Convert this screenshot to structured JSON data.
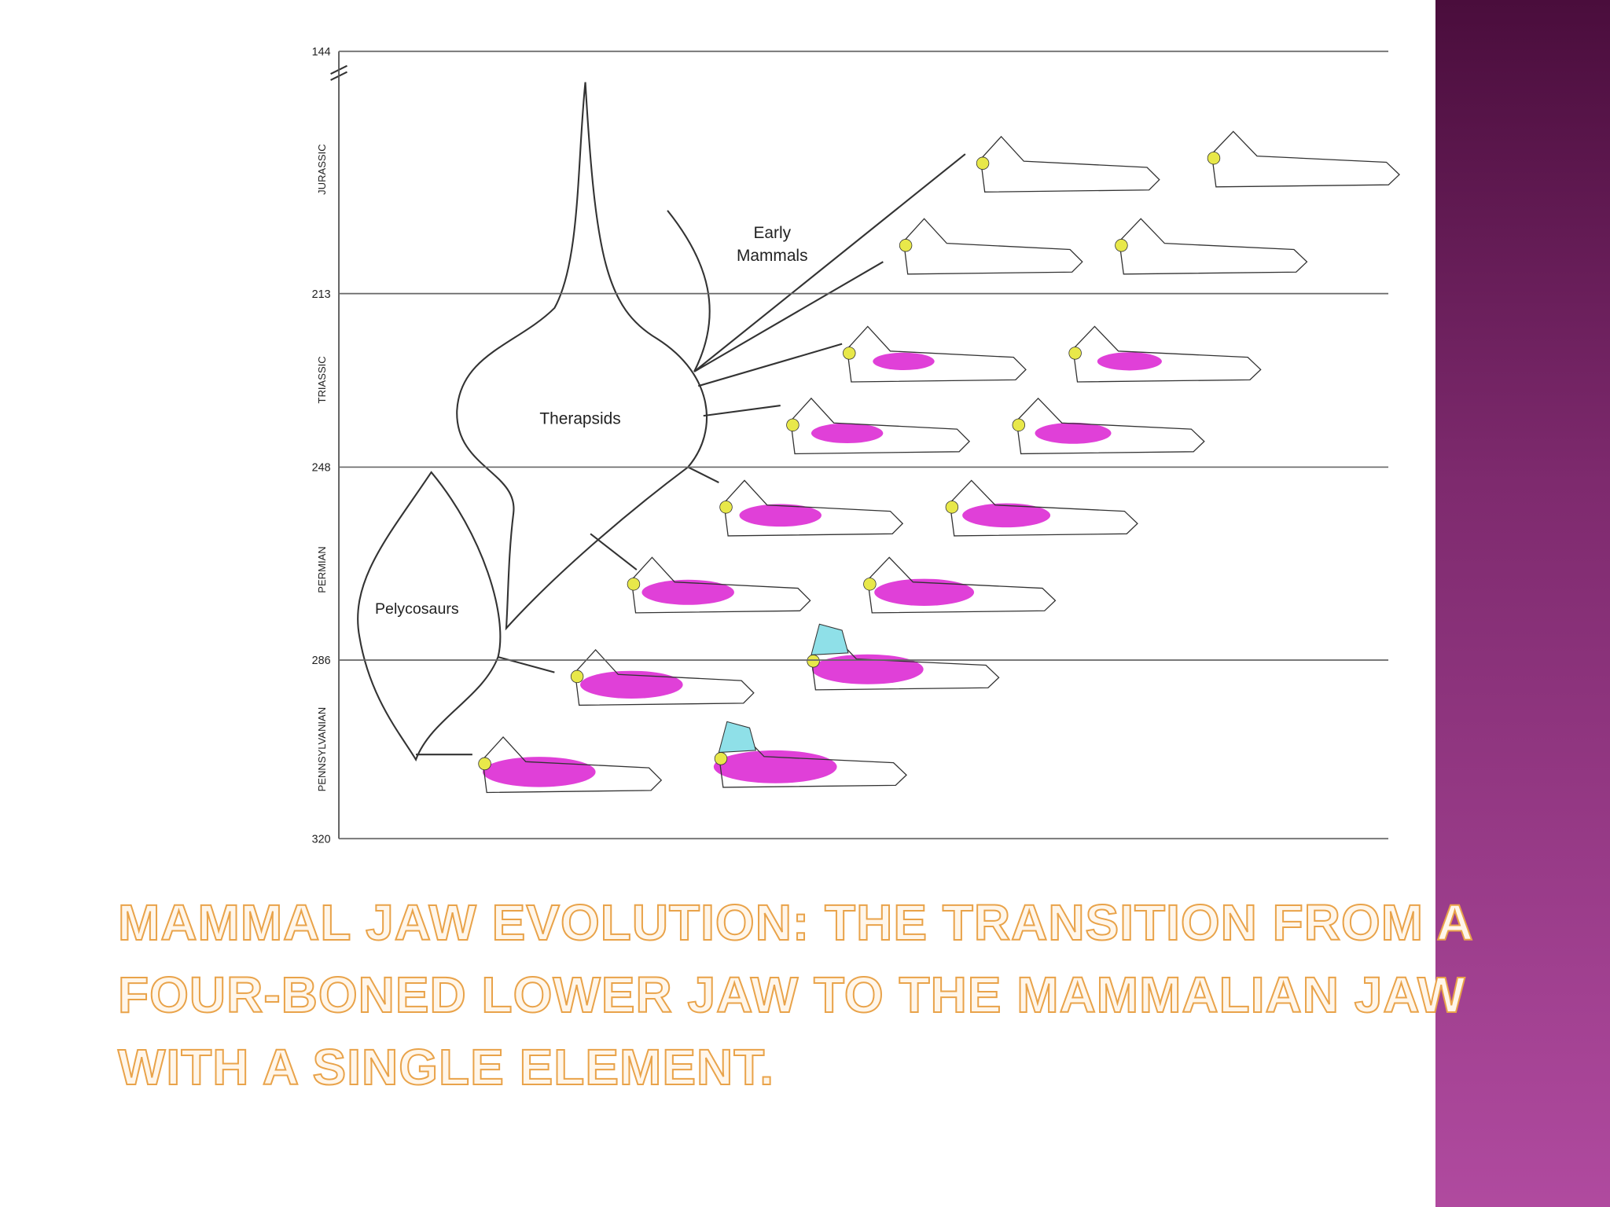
{
  "slide": {
    "title": "MAMMAL JAW EVOLUTION: THE TRANSITION FROM A FOUR-BONED LOWER JAW TO THE MAMMALIAN JAW WITH A SINGLE ELEMENT."
  },
  "diagram": {
    "time_ticks": [
      144,
      213,
      248,
      286,
      320
    ],
    "periods": [
      "JURASSIC",
      "TRIASSIC",
      "PERMIAN",
      "PENNSYLVANIAN"
    ],
    "clades": {
      "early_mammals": [
        "Early",
        "Mammals"
      ],
      "therapsids": "Therapsids",
      "pelycosaurs": "Pelycosaurs"
    }
  }
}
